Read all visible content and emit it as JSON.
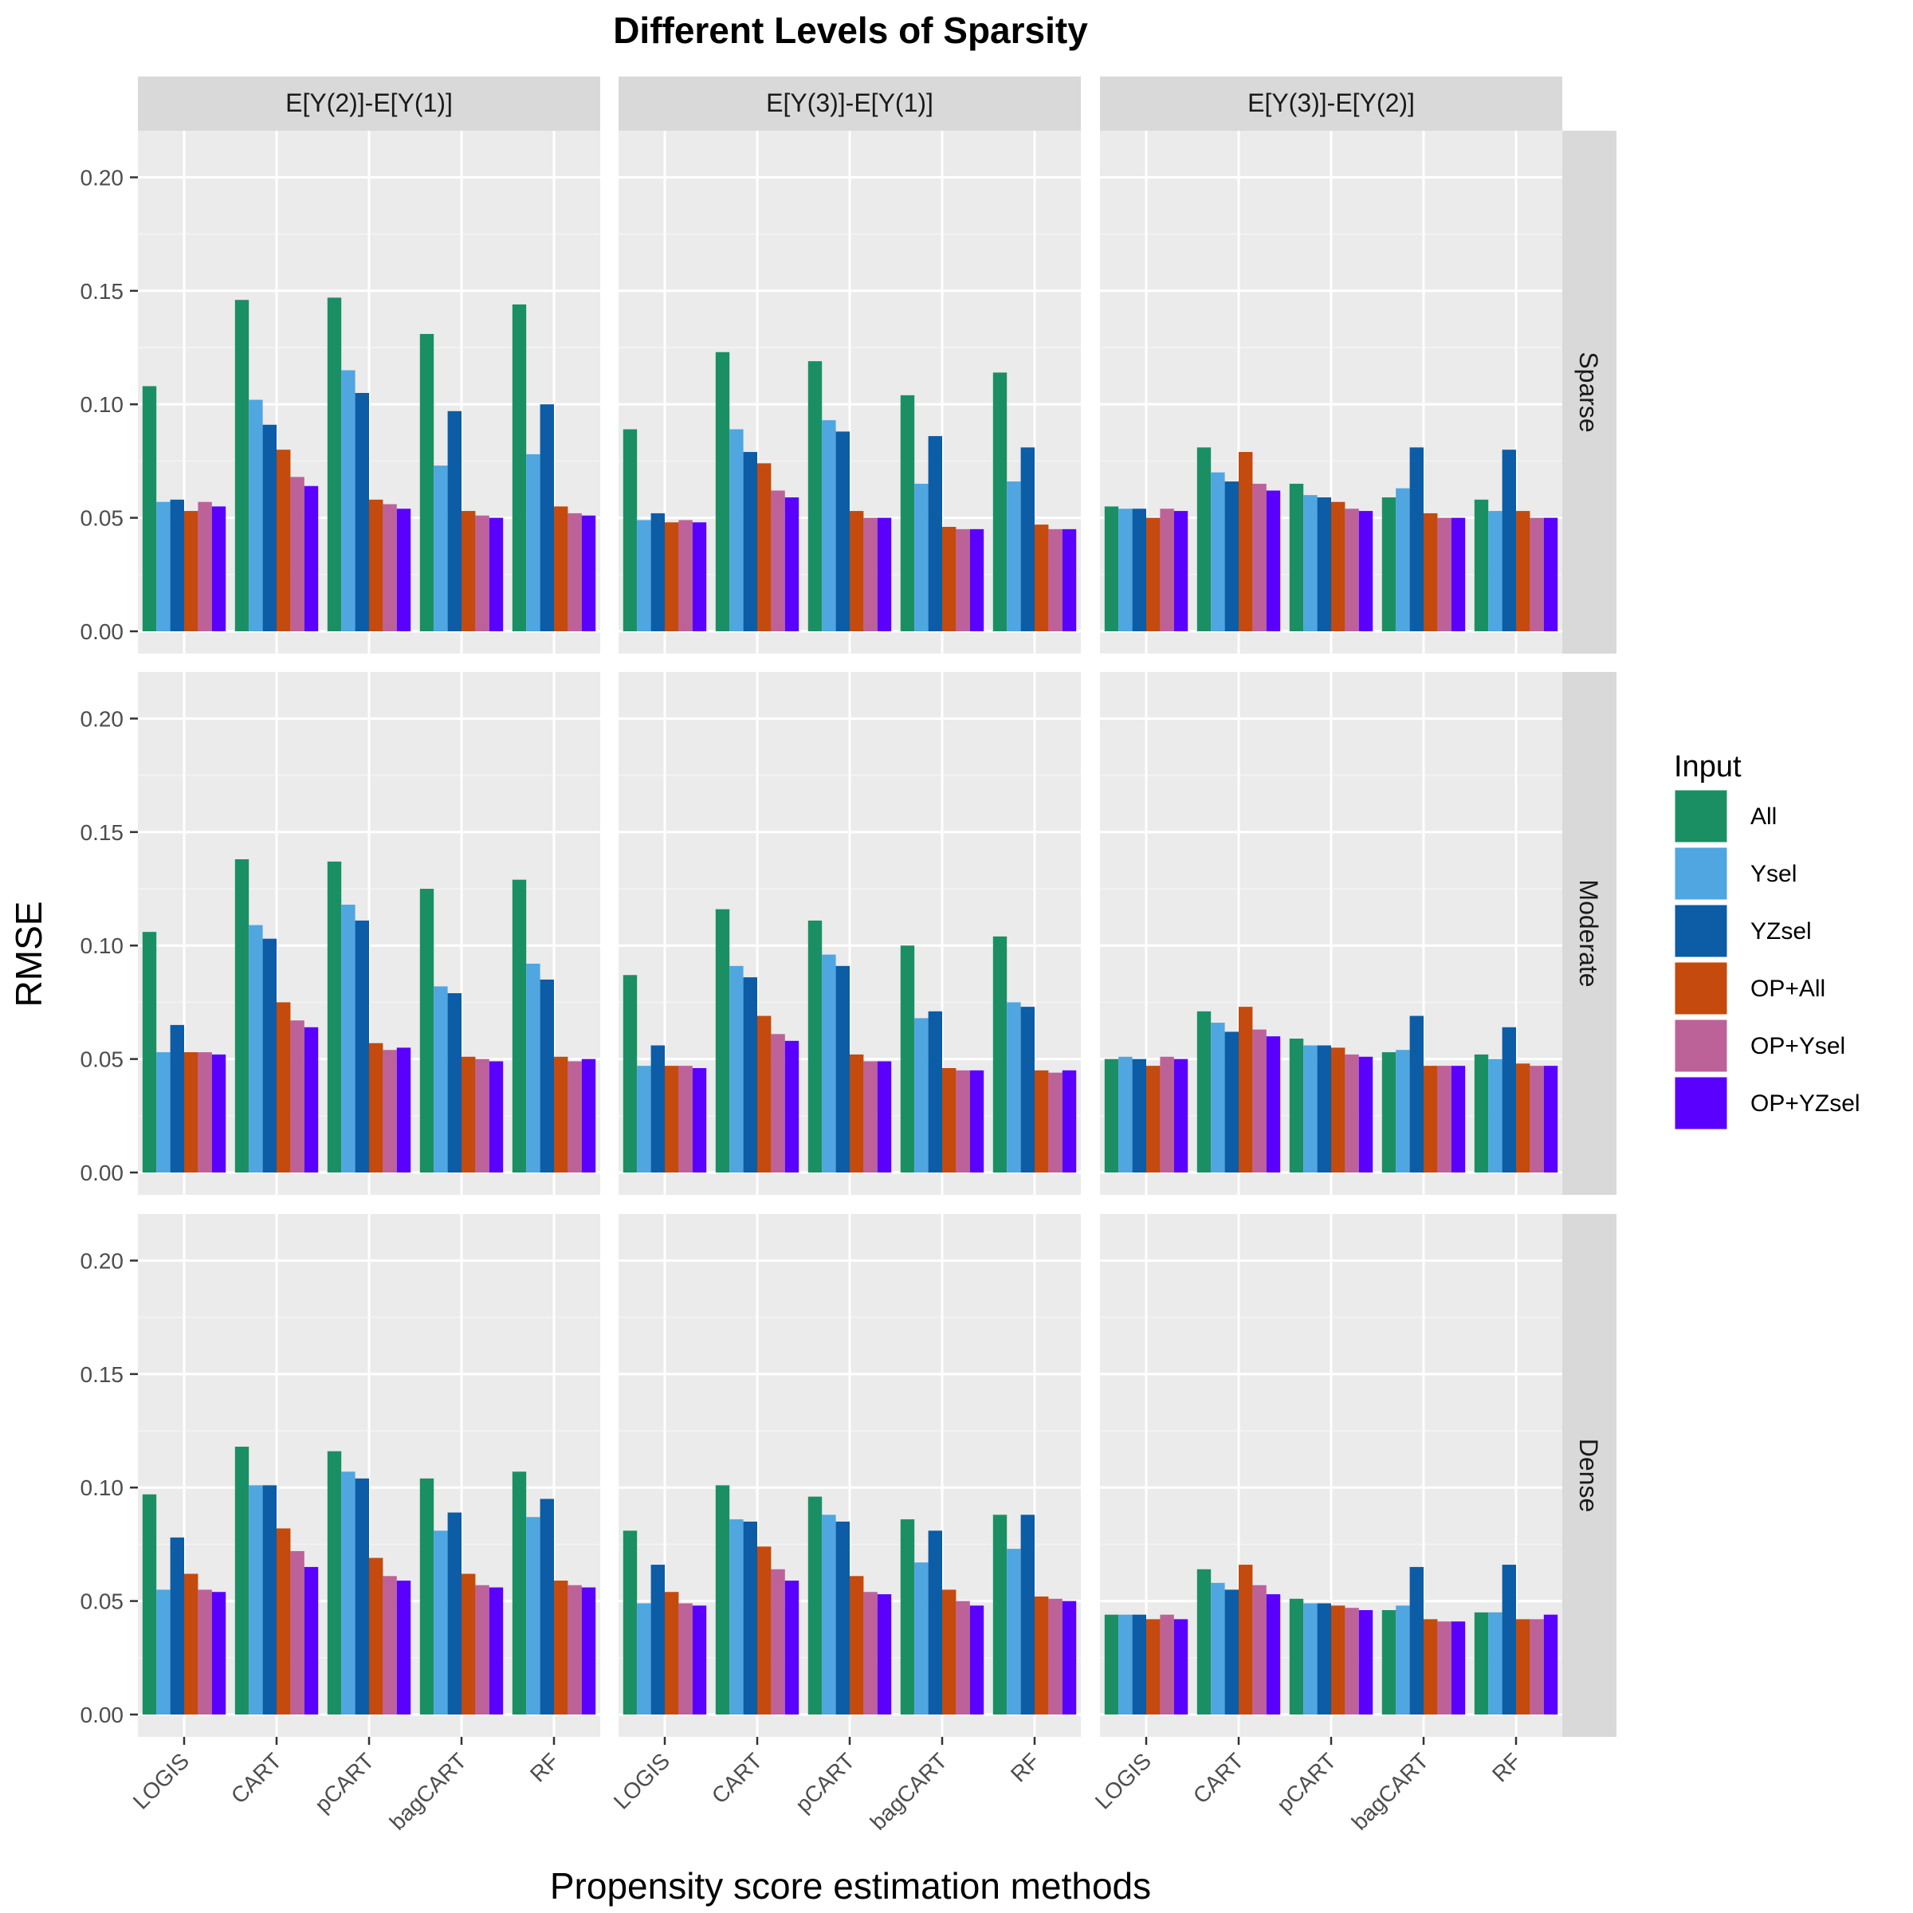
{
  "chart_data": {
    "type": "bar",
    "title": "Different Levels of Sparsity",
    "xlabel": "Propensity score estimation methods",
    "ylabel": "RMSE",
    "ylim": [
      0,
      0.21
    ],
    "yticks": [
      "0.00",
      "0.05",
      "0.10",
      "0.15",
      "0.20"
    ],
    "grid": true,
    "legend_position": "right",
    "legend": {
      "title": "Input",
      "entries": [
        "All",
        "Ysel",
        "YZsel",
        "OP+All",
        "OP+Ysel",
        "OP+YZsel"
      ],
      "colors": [
        "#1b8f64",
        "#4fa6e0",
        "#0c5ca6",
        "#c44a0d",
        "#bd6299",
        "#5a00ff"
      ]
    },
    "categories": [
      "LOGIS",
      "CART",
      "pCART",
      "bagCART",
      "RF"
    ],
    "col_facets": [
      "E[Y(2)]-E[Y(1)]",
      "E[Y(3)]-E[Y(1)]",
      "E[Y(3)]-E[Y(2)]"
    ],
    "row_facets": [
      "Sparse",
      "Moderate",
      "Dense"
    ],
    "panels": [
      [
        [
          [
            0.108,
            0.057,
            0.058,
            0.053,
            0.057,
            0.055
          ],
          [
            0.146,
            0.102,
            0.091,
            0.08,
            0.068,
            0.064
          ],
          [
            0.147,
            0.115,
            0.105,
            0.058,
            0.056,
            0.054
          ],
          [
            0.131,
            0.073,
            0.097,
            0.053,
            0.051,
            0.05
          ],
          [
            0.144,
            0.078,
            0.1,
            0.055,
            0.052,
            0.051
          ]
        ],
        [
          [
            0.089,
            0.049,
            0.052,
            0.048,
            0.049,
            0.048
          ],
          [
            0.123,
            0.089,
            0.079,
            0.074,
            0.062,
            0.059
          ],
          [
            0.119,
            0.093,
            0.088,
            0.053,
            0.05,
            0.05
          ],
          [
            0.104,
            0.065,
            0.086,
            0.046,
            0.045,
            0.045
          ],
          [
            0.114,
            0.066,
            0.081,
            0.047,
            0.045,
            0.045
          ]
        ],
        [
          [
            0.055,
            0.054,
            0.054,
            0.05,
            0.054,
            0.053
          ],
          [
            0.081,
            0.07,
            0.066,
            0.079,
            0.065,
            0.062
          ],
          [
            0.065,
            0.06,
            0.059,
            0.057,
            0.054,
            0.053
          ],
          [
            0.059,
            0.063,
            0.081,
            0.052,
            0.05,
            0.05
          ],
          [
            0.058,
            0.053,
            0.08,
            0.053,
            0.05,
            0.05
          ]
        ]
      ],
      [
        [
          [
            0.106,
            0.053,
            0.065,
            0.053,
            0.053,
            0.052
          ],
          [
            0.138,
            0.109,
            0.103,
            0.075,
            0.067,
            0.064
          ],
          [
            0.137,
            0.118,
            0.111,
            0.057,
            0.054,
            0.055
          ],
          [
            0.125,
            0.082,
            0.079,
            0.051,
            0.05,
            0.049
          ],
          [
            0.129,
            0.092,
            0.085,
            0.051,
            0.049,
            0.05
          ]
        ],
        [
          [
            0.087,
            0.047,
            0.056,
            0.047,
            0.047,
            0.046
          ],
          [
            0.116,
            0.091,
            0.086,
            0.069,
            0.061,
            0.058
          ],
          [
            0.111,
            0.096,
            0.091,
            0.052,
            0.049,
            0.049
          ],
          [
            0.1,
            0.068,
            0.071,
            0.046,
            0.045,
            0.045
          ],
          [
            0.104,
            0.075,
            0.073,
            0.045,
            0.044,
            0.045
          ]
        ],
        [
          [
            0.05,
            0.051,
            0.05,
            0.047,
            0.051,
            0.05
          ],
          [
            0.071,
            0.066,
            0.062,
            0.073,
            0.063,
            0.06
          ],
          [
            0.059,
            0.056,
            0.056,
            0.055,
            0.052,
            0.051
          ],
          [
            0.053,
            0.054,
            0.069,
            0.047,
            0.047,
            0.047
          ],
          [
            0.052,
            0.05,
            0.064,
            0.048,
            0.047,
            0.047
          ]
        ]
      ],
      [
        [
          [
            0.097,
            0.055,
            0.078,
            0.062,
            0.055,
            0.054
          ],
          [
            0.118,
            0.101,
            0.101,
            0.082,
            0.072,
            0.065
          ],
          [
            0.116,
            0.107,
            0.104,
            0.069,
            0.061,
            0.059
          ],
          [
            0.104,
            0.081,
            0.089,
            0.062,
            0.057,
            0.056
          ],
          [
            0.107,
            0.087,
            0.095,
            0.059,
            0.057,
            0.056
          ]
        ],
        [
          [
            0.081,
            0.049,
            0.066,
            0.054,
            0.049,
            0.048
          ],
          [
            0.101,
            0.086,
            0.085,
            0.074,
            0.064,
            0.059
          ],
          [
            0.096,
            0.088,
            0.085,
            0.061,
            0.054,
            0.053
          ],
          [
            0.086,
            0.067,
            0.081,
            0.055,
            0.05,
            0.048
          ],
          [
            0.088,
            0.073,
            0.088,
            0.052,
            0.051,
            0.05
          ]
        ],
        [
          [
            0.044,
            0.044,
            0.044,
            0.042,
            0.044,
            0.042
          ],
          [
            0.064,
            0.058,
            0.055,
            0.066,
            0.057,
            0.053
          ],
          [
            0.051,
            0.049,
            0.049,
            0.048,
            0.047,
            0.046
          ],
          [
            0.046,
            0.048,
            0.065,
            0.042,
            0.041,
            0.041
          ],
          [
            0.045,
            0.045,
            0.066,
            0.042,
            0.042,
            0.044
          ]
        ]
      ]
    ]
  }
}
